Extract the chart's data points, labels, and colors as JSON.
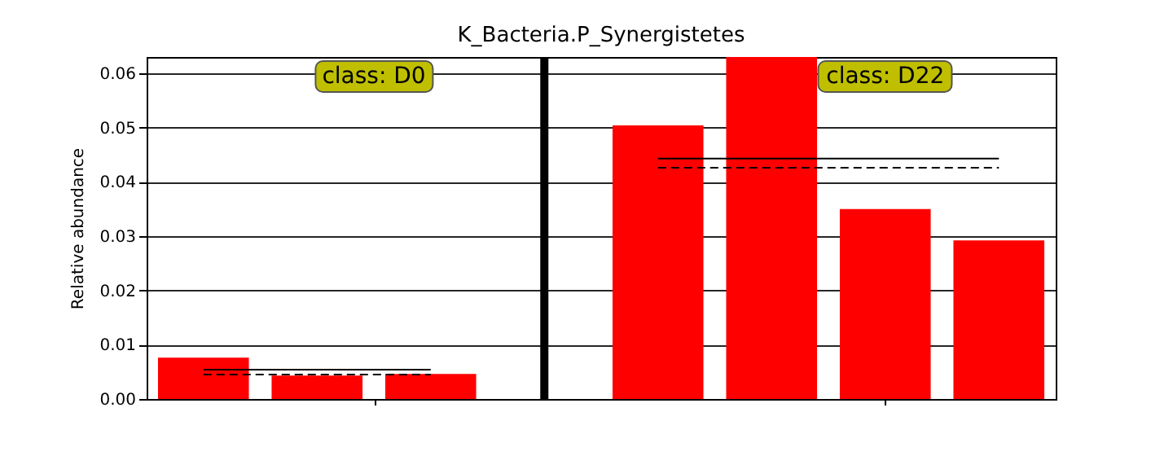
{
  "chart_data": {
    "type": "bar",
    "title": "K_Bacteria.P_Synergistetes",
    "ylabel": "Relative abundance",
    "categories": [
      null,
      null,
      null,
      null,
      null,
      null,
      null,
      null
    ],
    "series": [
      {
        "type": "bar",
        "color": "#ff0000",
        "values": [
          0.0076,
          0.0043,
          0.0046,
          null,
          0.0504,
          0.063,
          0.035,
          0.0292
        ]
      },
      {
        "type": "line",
        "color": "#000000",
        "line_style": "solid",
        "values": [
          0.0054,
          0.0054,
          0.0054,
          null,
          null,
          null,
          null,
          null
        ]
      },
      {
        "type": "line",
        "color": "#000000",
        "line_style": "dashed",
        "values": [
          0.0045,
          0.0045,
          0.0045,
          null,
          null,
          null,
          null,
          null
        ]
      },
      {
        "type": "line",
        "color": "#000000",
        "line_style": "solid",
        "values": [
          null,
          null,
          null,
          null,
          0.0443,
          0.0443,
          0.0443,
          0.0443
        ]
      },
      {
        "type": "line",
        "color": "#000000",
        "line_style": "dashed",
        "values": [
          null,
          null,
          null,
          null,
          0.0426,
          0.0426,
          0.0426,
          0.0426
        ]
      }
    ],
    "ylim": [
      0,
      0.063
    ],
    "yticks": [
      {
        "value": 0,
        "label": "0.00"
      },
      0.01,
      0.02,
      0.03,
      0.04,
      0.05,
      0.06
    ],
    "grid": "y",
    "tick_labels": "y",
    "annotations": [
      "class: D0",
      "class: D22"
    ]
  }
}
